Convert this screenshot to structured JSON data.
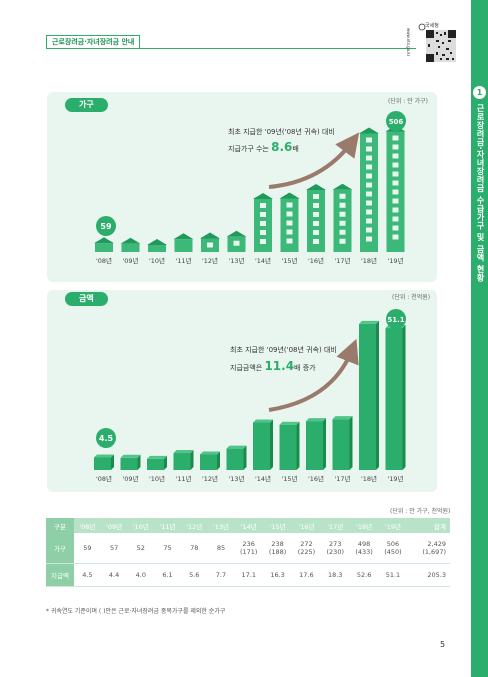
{
  "header": {
    "tag": "근로장려금·자녀장려금 안내",
    "qr_text": "www.nts.go.kr",
    "qr_logo": "국세청"
  },
  "sidebar": {
    "number": "1",
    "title": "근로장려금·자녀장려금 수급가구 및 금액 현황"
  },
  "panel_households": {
    "title": "가구",
    "unit": "(단위 : 만 가구)",
    "note_line1": "최초 지급한 '09년('08년 귀속) 대비",
    "note_line2_prefix": "지급가구 수는 ",
    "note_highlight": "8.6",
    "note_suffix": "배",
    "callout_first": "59",
    "callout_last": "506"
  },
  "panel_amount": {
    "title": "금액",
    "unit": "(단위 : 천억원)",
    "note_line1": "최초 지급한 '09년('08년 귀속) 대비",
    "note_line2_prefix": "지급금액은 ",
    "note_highlight": "11.4",
    "note_suffix": "배 증가",
    "callout_first": "4.5",
    "callout_last": "51.1"
  },
  "chart_data": [
    {
      "type": "bar",
      "categories": [
        "'08년",
        "'09년",
        "'10년",
        "'11년",
        "'12년",
        "'13년",
        "'14년",
        "'15년",
        "'16년",
        "'17년",
        "'18년",
        "'19년"
      ],
      "values": [
        59,
        57,
        52,
        75,
        78,
        85,
        236,
        238,
        272,
        273,
        498,
        506
      ],
      "ylim": [
        0,
        520
      ]
    },
    {
      "type": "bar",
      "categories": [
        "'08년",
        "'09년",
        "'10년",
        "'11년",
        "'12년",
        "'13년",
        "'14년",
        "'15년",
        "'16년",
        "'17년",
        "'18년",
        "'19년"
      ],
      "values": [
        4.5,
        4.4,
        4.0,
        6.1,
        5.6,
        7.7,
        17.1,
        16.3,
        17.6,
        18.3,
        52.6,
        51.1
      ],
      "ylim": [
        0,
        54
      ]
    }
  ],
  "table": {
    "unit": "(단위 : 만 가구, 천억원)",
    "headers": [
      "구분",
      "'08년",
      "'09년",
      "'10년",
      "'11년",
      "'12년",
      "'13년",
      "'14년",
      "'15년",
      "'16년",
      "'17년",
      "'18년",
      "'19년",
      "합계"
    ],
    "row1_label": "가구",
    "row1_main": [
      "59",
      "57",
      "52",
      "75",
      "78",
      "85",
      "236",
      "238",
      "272",
      "273",
      "498",
      "506",
      "2,429"
    ],
    "row1_sub": [
      "",
      "",
      "",
      "",
      "",
      "",
      "(171)",
      "(188)",
      "(225)",
      "(230)",
      "(433)",
      "(450)",
      "(1,697)"
    ],
    "row2_label": "지급액",
    "row2": [
      "4.5",
      "4.4",
      "4.0",
      "6.1",
      "5.6",
      "7.7",
      "17.1",
      "16.3",
      "17.6",
      "18.3",
      "52.6",
      "51.1",
      "205.3"
    ]
  },
  "footnote": "* 귀속연도 기준이며 ( )안은 근로·자녀장려금 중복가구를 제외한 순가구",
  "page_number": "5"
}
